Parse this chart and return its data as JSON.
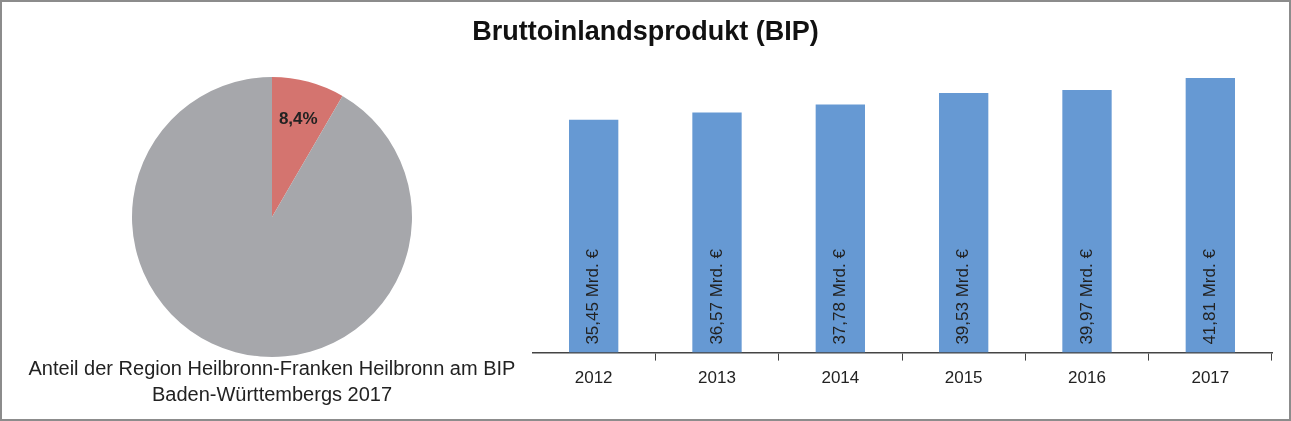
{
  "chart_data": [
    {
      "type": "pie",
      "title": "Anteil der Region Heilbronn-Franken Heilbronn am BIP Baden-Württembergs 2017",
      "categories": [
        null,
        null
      ],
      "values": [
        8.4,
        91.6
      ],
      "colors": [
        "#d4746f",
        "#a6a7ab"
      ],
      "value_labels": [
        "8,4%",
        null
      ],
      "legend": false
    },
    {
      "type": "bar",
      "title": "Bruttoinlandsprodukt (BIP)",
      "categories": [
        "2012",
        "2013",
        "2014",
        "2015",
        "2016",
        "2017"
      ],
      "values": [
        35.45,
        36.57,
        37.78,
        39.53,
        39.97,
        41.81
      ],
      "color": "#6699d3",
      "value_labels": [
        "35,45 Mrd. €",
        "36,57 Mrd. €",
        "37,78 Mrd. €",
        "39,53 Mrd. €",
        "39,97 Mrd. €",
        "41,81 Mrd. €"
      ],
      "tick_labels": "x",
      "grid": false,
      "legend": false
    }
  ]
}
